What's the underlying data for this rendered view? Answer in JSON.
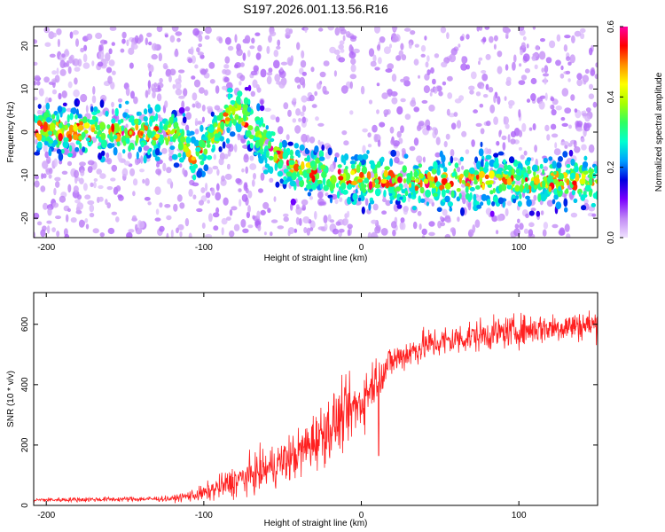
{
  "figure": {
    "title": "S197.2026.001.13.56.R16"
  },
  "chart_data": [
    {
      "type": "heatmap",
      "name": "spectrogram",
      "title": "S197.2026.001.13.56.R16",
      "xlabel": "Height of straight line (km)",
      "ylabel": "Frequency (Hz)",
      "xlim": [
        -208,
        150
      ],
      "ylim": [
        -24.5,
        24.5
      ],
      "xticks": [
        -200,
        -100,
        0,
        100
      ],
      "yticks": [
        -20,
        -10,
        0,
        10,
        20
      ],
      "xtick_labels": [
        "-200",
        "-100",
        "0",
        "100"
      ],
      "ytick_labels": [
        "-20",
        "-10",
        "0",
        "10",
        "20"
      ],
      "ridge": [
        {
          "x": -208,
          "freq": 0.5
        },
        {
          "x": -120,
          "freq": 0
        },
        {
          "x": -105,
          "freq": -6
        },
        {
          "x": -80,
          "freq": 6
        },
        {
          "x": -60,
          "freq": -3
        },
        {
          "x": -45,
          "freq": -8
        },
        {
          "x": -20,
          "freq": -10
        },
        {
          "x": 0,
          "freq": -11
        },
        {
          "x": 50,
          "freq": -11.5
        },
        {
          "x": 150,
          "freq": -11.5
        }
      ],
      "colorbar": {
        "label": "Normalized spectral amplitude",
        "range": [
          0,
          0.6
        ],
        "ticks": [
          0.0,
          0.2,
          0.4,
          0.6
        ],
        "tick_labels": [
          "0.0",
          "0.2",
          "0.4",
          "0.6"
        ],
        "colors": [
          "#f0e2ff",
          "#c189f5",
          "#7a00ff",
          "#0000e0",
          "#00a0ff",
          "#00ffd0",
          "#30ff60",
          "#a8ff00",
          "#ffff00",
          "#ff9000",
          "#ff0000",
          "#ff00a0"
        ]
      }
    },
    {
      "type": "line",
      "name": "snr",
      "xlabel": "Height of straight line (km)",
      "ylabel": "SNR (10 * v/v)",
      "xlim": [
        -208,
        150
      ],
      "ylim": [
        0,
        705
      ],
      "xticks": [
        -200,
        -100,
        0,
        100
      ],
      "yticks": [
        0,
        200,
        400,
        600
      ],
      "xtick_labels": [
        "-200",
        "-100",
        "0",
        "100"
      ],
      "ytick_labels": [
        "0",
        "200",
        "400",
        "600"
      ],
      "series": [
        {
          "name": "SNR",
          "color": "#ff2020",
          "trend": [
            {
              "x": -208,
              "y": 18
            },
            {
              "x": -120,
              "y": 22
            },
            {
              "x": -100,
              "y": 40
            },
            {
              "x": -80,
              "y": 80
            },
            {
              "x": -60,
              "y": 120
            },
            {
              "x": -40,
              "y": 170
            },
            {
              "x": -20,
              "y": 260
            },
            {
              "x": 0,
              "y": 340
            },
            {
              "x": 10,
              "y": 430
            },
            {
              "x": 20,
              "y": 480
            },
            {
              "x": 40,
              "y": 530
            },
            {
              "x": 70,
              "y": 560
            },
            {
              "x": 110,
              "y": 585
            },
            {
              "x": 150,
              "y": 600
            }
          ],
          "spread": [
            {
              "x": -208,
              "y": 8
            },
            {
              "x": -120,
              "y": 10
            },
            {
              "x": -100,
              "y": 30
            },
            {
              "x": -80,
              "y": 60
            },
            {
              "x": -40,
              "y": 90
            },
            {
              "x": -20,
              "y": 120
            },
            {
              "x": 0,
              "y": 110
            },
            {
              "x": 20,
              "y": 60
            },
            {
              "x": 150,
              "y": 55
            }
          ],
          "dips": [
            {
              "x": 11,
              "y": 165
            }
          ]
        }
      ]
    }
  ]
}
